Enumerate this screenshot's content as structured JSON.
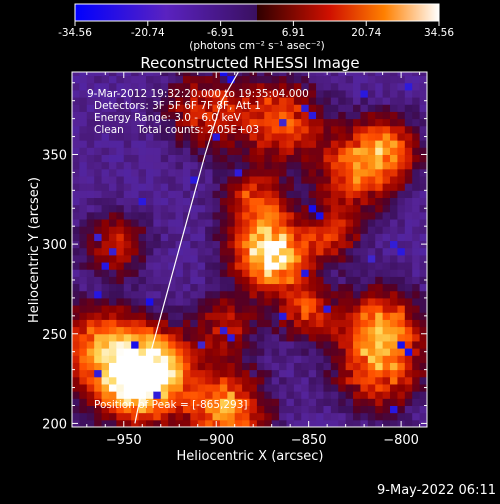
{
  "colorbar": {
    "ticks": [
      "-34.56",
      "-20.74",
      "-6.91",
      "6.91",
      "20.74",
      "34.56"
    ],
    "tick_values": [
      -34.56,
      -20.74,
      -6.91,
      6.91,
      20.74,
      34.56
    ],
    "range": [
      -34.56,
      34.56
    ],
    "units_label": "(photons cm⁻² s⁻¹ asec⁻²)"
  },
  "chart_data": {
    "type": "heatmap",
    "title": "Reconstructed RHESSI Image",
    "xlabel": "Heliocentric X (arcsec)",
    "ylabel": "Heliocentric Y (arcsec)",
    "xlim": [
      -978,
      -786
    ],
    "ylim": [
      198,
      396
    ],
    "xticks": [
      -950,
      -900,
      -850,
      -800
    ],
    "xtick_labels": [
      "−950",
      "−900",
      "−850",
      "−800"
    ],
    "yticks": [
      200,
      250,
      300,
      350
    ],
    "ytick_labels": [
      "200",
      "250",
      "300",
      "350"
    ],
    "annotations": [
      "9-Mar-2012 19:32:20.000 to 19:35:04.000",
      "Detectors: 3F 5F 6F 7F 8F, Att 1",
      "Energy Range: 3.0 - 6.0 keV",
      "Clean    Total counts: 2.05E+03"
    ],
    "peak_label": "Position of Peak = [-865,293]",
    "peak": [
      -865,
      293
    ],
    "sources": [
      {
        "x": -870,
        "y": 295,
        "amp": 34.6,
        "w": 14
      },
      {
        "x": -943,
        "y": 222,
        "amp": 30,
        "w": 15
      },
      {
        "x": -963,
        "y": 243,
        "amp": 18,
        "w": 16
      },
      {
        "x": -932,
        "y": 235,
        "amp": 16,
        "w": 14
      },
      {
        "x": -895,
        "y": 208,
        "amp": 22,
        "w": 15
      },
      {
        "x": -810,
        "y": 255,
        "amp": 18,
        "w": 14
      },
      {
        "x": -812,
        "y": 230,
        "amp": 15,
        "w": 16
      },
      {
        "x": -825,
        "y": 340,
        "amp": 15,
        "w": 16
      },
      {
        "x": -808,
        "y": 355,
        "amp": 14,
        "w": 12
      },
      {
        "x": -865,
        "y": 370,
        "amp": 15,
        "w": 15
      },
      {
        "x": -905,
        "y": 375,
        "amp": 10,
        "w": 16
      },
      {
        "x": -880,
        "y": 325,
        "amp": 12,
        "w": 12
      },
      {
        "x": -850,
        "y": 262,
        "amp": 12,
        "w": 11
      },
      {
        "x": -955,
        "y": 300,
        "amp": 10,
        "w": 12
      },
      {
        "x": -895,
        "y": 255,
        "amp": 8,
        "w": 12
      },
      {
        "x": -836,
        "y": 305,
        "amp": 8,
        "w": 10
      }
    ],
    "limb_curve": {
      "x": [
        -944,
        -938,
        -930,
        -922,
        -914,
        -906,
        -897,
        -888
      ],
      "y": [
        200,
        230,
        260,
        290,
        320,
        350,
        380,
        396
      ]
    }
  },
  "footer_date": "9-May-2022 06:11"
}
